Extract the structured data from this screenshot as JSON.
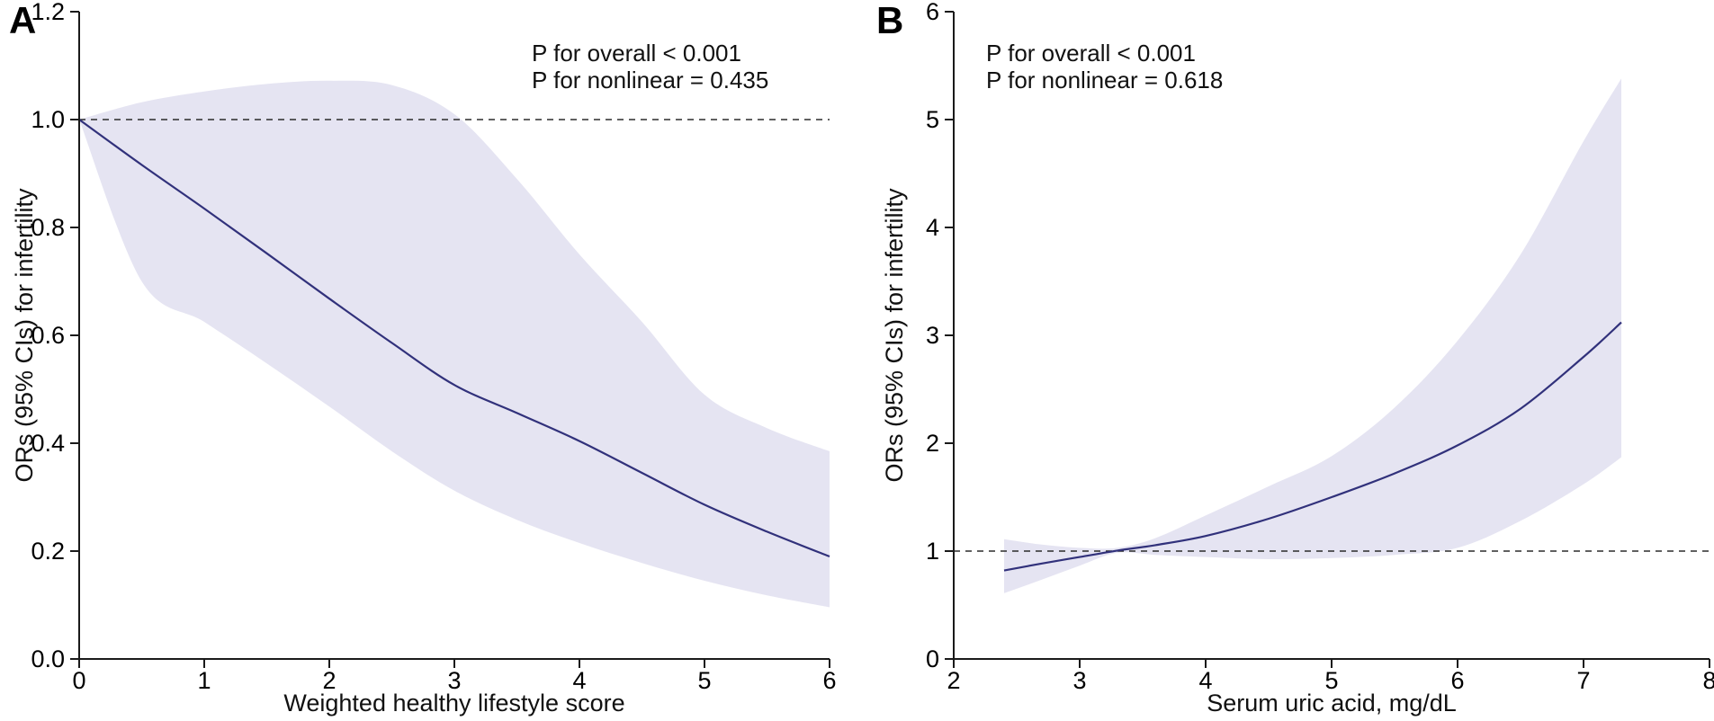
{
  "figure": {
    "background": "#ffffff",
    "colors": {
      "band": "#e5e4f2",
      "line": "#31317b",
      "axis": "#1a1a1a",
      "ref_line": "#2b2b2b",
      "text": "#000000"
    }
  },
  "chart_data": [
    {
      "type": "line",
      "panel_label": "A",
      "annotations": [
        "P for overall < 0.001",
        "P for nonlinear = 0.435"
      ],
      "xlabel": "Weighted healthy lifestyle score",
      "ylabel": "ORs (95% CIs) for infertility",
      "xlim": [
        0,
        6
      ],
      "ylim": [
        0,
        1.2
      ],
      "x_ticks": [
        0,
        1,
        2,
        3,
        4,
        5,
        6
      ],
      "x_tick_labels": [
        "0",
        "1",
        "2",
        "3",
        "4",
        "5",
        "6"
      ],
      "y_ticks": [
        0,
        0.2,
        0.4,
        0.6,
        0.8,
        1.0,
        1.2
      ],
      "y_tick_labels": [
        "0.0",
        "0.2",
        "0.4",
        "0.6",
        "0.8",
        "1.0",
        "1.2"
      ],
      "reference_line_y": 1.0,
      "grid": false,
      "legend": "none",
      "series": [
        {
          "name": "OR",
          "x": [
            0,
            0.5,
            1,
            1.5,
            2,
            2.5,
            3,
            3.5,
            4,
            4.5,
            5,
            5.5,
            6
          ],
          "y": [
            1.0,
            0.916,
            0.835,
            0.752,
            0.668,
            0.586,
            0.508,
            0.456,
            0.404,
            0.345,
            0.286,
            0.236,
            0.19
          ]
        }
      ],
      "ci_upper": {
        "x": [
          0,
          0.5,
          1,
          1.5,
          2,
          2.5,
          3,
          3.5,
          4,
          4.5,
          5,
          5.5,
          6
        ],
        "y": [
          1.0,
          1.032,
          1.052,
          1.066,
          1.072,
          1.064,
          1.01,
          0.89,
          0.75,
          0.625,
          0.49,
          0.428,
          0.385
        ]
      },
      "ci_lower": {
        "x": [
          0,
          0.5,
          1,
          1.5,
          2,
          2.5,
          3,
          3.5,
          4,
          4.5,
          5,
          5.5,
          6
        ],
        "y": [
          1.0,
          0.7,
          0.625,
          0.548,
          0.468,
          0.385,
          0.312,
          0.258,
          0.215,
          0.178,
          0.145,
          0.118,
          0.096
        ]
      }
    },
    {
      "type": "line",
      "panel_label": "B",
      "annotations": [
        "P for overall < 0.001",
        "P for nonlinear = 0.618"
      ],
      "xlabel": "Serum uric acid, mg/dL",
      "ylabel": "ORs (95% CIs) for infertility",
      "xlim": [
        2,
        8
      ],
      "ylim": [
        0,
        6
      ],
      "x_ticks": [
        2,
        3,
        4,
        5,
        6,
        7,
        8
      ],
      "x_tick_labels": [
        "2",
        "3",
        "4",
        "5",
        "6",
        "7",
        "8"
      ],
      "y_ticks": [
        0,
        1,
        2,
        3,
        4,
        5,
        6
      ],
      "y_tick_labels": [
        "0",
        "1",
        "2",
        "3",
        "4",
        "5",
        "6"
      ],
      "reference_line_y": 1.0,
      "grid": false,
      "legend": "none",
      "series": [
        {
          "name": "OR",
          "x": [
            2.4,
            2.7,
            3.0,
            3.3,
            3.6,
            4.0,
            4.5,
            5.0,
            5.5,
            6.0,
            6.5,
            7.0,
            7.3
          ],
          "y": [
            0.82,
            0.885,
            0.945,
            1.005,
            1.055,
            1.14,
            1.3,
            1.5,
            1.72,
            1.98,
            2.32,
            2.8,
            3.12
          ]
        }
      ],
      "ci_upper": {
        "x": [
          2.4,
          2.7,
          3.0,
          3.3,
          3.6,
          4.0,
          4.5,
          5.0,
          5.5,
          6.0,
          6.5,
          7.0,
          7.3
        ],
        "y": [
          1.11,
          1.06,
          1.03,
          1.03,
          1.12,
          1.33,
          1.6,
          1.88,
          2.33,
          2.95,
          3.75,
          4.8,
          5.38
        ]
      },
      "ci_lower": {
        "x": [
          2.4,
          2.7,
          3.0,
          3.3,
          3.6,
          4.0,
          4.5,
          5.0,
          5.5,
          6.0,
          6.5,
          7.0,
          7.3
        ],
        "y": [
          0.61,
          0.735,
          0.865,
          0.985,
          0.965,
          0.945,
          0.925,
          0.935,
          0.965,
          1.03,
          1.28,
          1.62,
          1.87
        ]
      }
    }
  ]
}
